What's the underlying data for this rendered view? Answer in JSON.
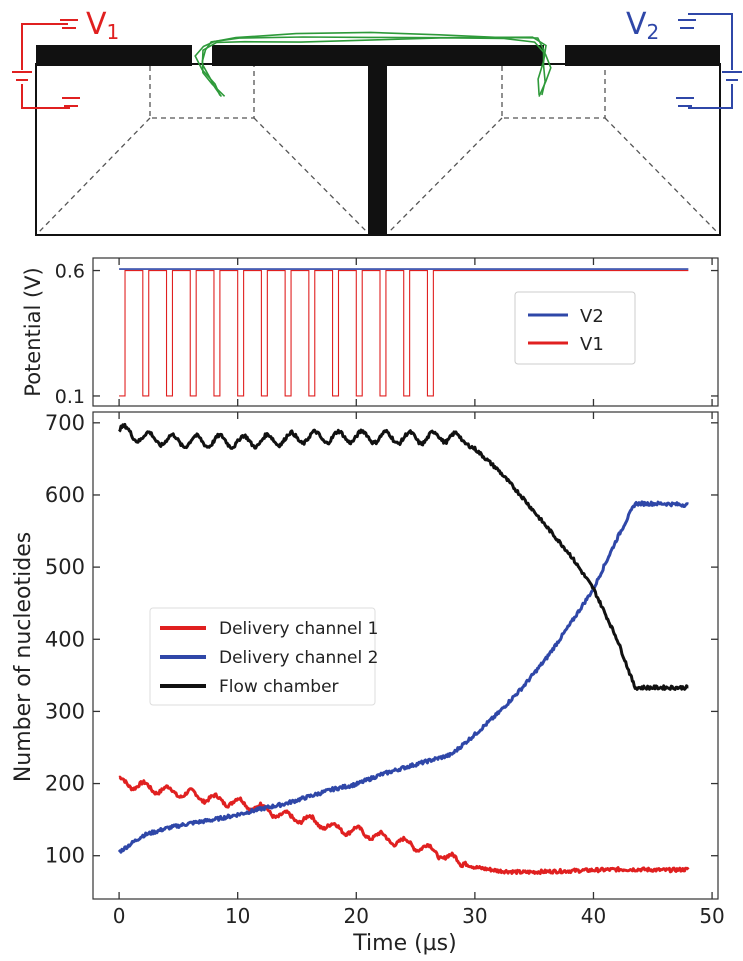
{
  "schematic": {
    "v1_label": "V",
    "v1_sub": "1",
    "v2_label": "V",
    "v2_sub": "2",
    "v1_color": "#e02020",
    "v2_color": "#2f47a8",
    "strand_color": "#2e9a3a"
  },
  "chart_data": [
    {
      "type": "line",
      "title": "",
      "ylabel": "Potential (V)",
      "xlabel": "",
      "xlim": [
        -2.2,
        50.5
      ],
      "ylim": [
        0.06,
        0.65
      ],
      "yticks": [
        0.1,
        0.6
      ],
      "ytick_labels": [
        "0.1",
        "0.6"
      ],
      "xticks": [
        0,
        10,
        20,
        30,
        40,
        50
      ],
      "legend": {
        "placement": "right",
        "entries": [
          "V2",
          "V1"
        ]
      },
      "series": [
        {
          "name": "V2",
          "color": "#2f47a8",
          "constant": 0.6,
          "x_range": [
            0,
            48
          ]
        },
        {
          "name": "V1",
          "color": "#e02020",
          "low": 0.1,
          "high": 0.6,
          "pulse_period": 2.0,
          "pulse_low_duration": 0.5,
          "pulse_count": 14,
          "pulse_end": 28.5,
          "x_range": [
            0,
            48
          ]
        }
      ]
    },
    {
      "type": "line",
      "title": "",
      "xlabel": "Time (µs)",
      "ylabel": "Number of nucleotides",
      "xlim": [
        -2.2,
        50.5
      ],
      "ylim": [
        40,
        715
      ],
      "xticks": [
        0,
        10,
        20,
        30,
        40,
        50
      ],
      "xtick_labels": [
        "0",
        "10",
        "20",
        "30",
        "40",
        "50"
      ],
      "yticks": [
        100,
        200,
        300,
        400,
        500,
        600,
        700
      ],
      "ytick_labels": [
        "100",
        "200",
        "300",
        "400",
        "500",
        "600",
        "700"
      ],
      "legend": {
        "placement": "center-left",
        "entries": [
          "Delivery channel 1",
          "Delivery channel 2",
          "Flow chamber"
        ]
      },
      "series": [
        {
          "name": "Delivery channel 1",
          "color": "#e02020",
          "x": [
            0,
            2,
            4,
            6,
            8,
            10,
            12,
            14,
            16,
            18,
            20,
            22,
            24,
            26,
            28,
            30,
            32,
            34,
            36,
            38,
            40,
            42,
            44,
            46,
            48
          ],
          "y": [
            203,
            196,
            190,
            185,
            178,
            174,
            166,
            154,
            150,
            139,
            134,
            126,
            118,
            110,
            96,
            84,
            79,
            77,
            78,
            79,
            80,
            81,
            81,
            80,
            81
          ]
        },
        {
          "name": "Delivery channel 2",
          "color": "#2f47a8",
          "x": [
            0,
            2,
            4,
            6,
            8,
            10,
            12,
            14,
            16,
            18,
            20,
            22,
            24,
            26,
            28,
            30,
            32,
            34,
            36,
            38,
            40,
            42,
            43.5,
            44,
            46,
            48
          ],
          "y": [
            105,
            128,
            138,
            145,
            150,
            157,
            165,
            172,
            182,
            192,
            199,
            212,
            222,
            231,
            240,
            268,
            298,
            333,
            373,
            420,
            470,
            540,
            588,
            588,
            588,
            586
          ]
        },
        {
          "name": "Flow chamber",
          "color": "#111111",
          "x": [
            0,
            2,
            4,
            6,
            8,
            10,
            12,
            14,
            16,
            18,
            20,
            22,
            24,
            26,
            28,
            30,
            32,
            34,
            36,
            38,
            40,
            42,
            43.5,
            44,
            46,
            48
          ],
          "y": [
            690,
            680,
            676,
            674,
            675,
            674,
            675,
            678,
            680,
            680,
            681,
            680,
            679,
            679,
            682,
            664,
            634,
            597,
            557,
            518,
            470,
            400,
            333,
            333,
            333,
            333
          ]
        }
      ]
    }
  ]
}
